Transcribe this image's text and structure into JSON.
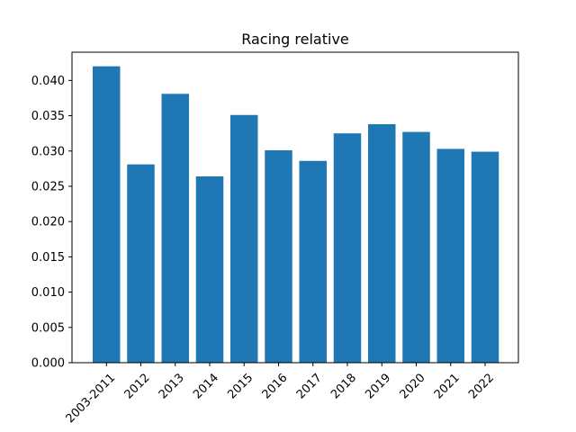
{
  "chart_data": {
    "type": "bar",
    "title": "Racing relative",
    "xlabel": "",
    "ylabel": "",
    "categories": [
      "2003-2011",
      "2012",
      "2013",
      "2014",
      "2015",
      "2016",
      "2017",
      "2018",
      "2019",
      "2020",
      "2021",
      "2022"
    ],
    "values": [
      0.042,
      0.0281,
      0.0381,
      0.0264,
      0.0351,
      0.0301,
      0.0286,
      0.0325,
      0.0338,
      0.0327,
      0.0303,
      0.0299
    ],
    "ylim": [
      0,
      0.044
    ],
    "yticks": [
      0.0,
      0.005,
      0.01,
      0.015,
      0.02,
      0.025,
      0.03,
      0.035,
      0.04
    ],
    "ytick_labels": [
      "0.000",
      "0.005",
      "0.010",
      "0.015",
      "0.020",
      "0.025",
      "0.030",
      "0.035",
      "0.040"
    ],
    "bar_color": "#1f77b4",
    "grid": false,
    "legend": "none",
    "xtick_rotation_deg": 45
  }
}
